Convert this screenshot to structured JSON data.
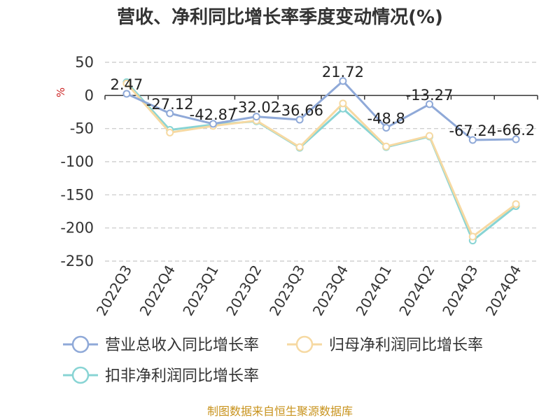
{
  "chart_data": {
    "type": "line",
    "title": "营收、净利同比增长率季度变动情况(%)",
    "unit_label": "%",
    "categories": [
      "2022Q3",
      "2022Q4",
      "2023Q1",
      "2023Q2",
      "2023Q3",
      "2023Q4",
      "2024Q1",
      "2024Q2",
      "2024Q3",
      "2024Q4"
    ],
    "yticks": [
      50,
      0,
      -50,
      -100,
      -150,
      -200,
      -250
    ],
    "ylim": [
      -250,
      50
    ],
    "grid": true,
    "legend_position": "bottom",
    "series": [
      {
        "name": "营业总收入同比增长率",
        "color": "#8fa9d8",
        "values": [
          2.47,
          -27.12,
          -42.87,
          -32.02,
          -36.66,
          21.72,
          -48.8,
          -13.27,
          -67.24,
          -66.2
        ],
        "labels": [
          "2.47",
          "-27.12",
          "-42.87",
          "-32.02",
          "-36.66",
          "21.72",
          "-48.8",
          "-13.27",
          "-67.24",
          "-66.2"
        ]
      },
      {
        "name": "归母净利润同比增长率",
        "color": "#f6d9a2",
        "values": [
          18,
          -56,
          -46,
          -38,
          -78,
          -12,
          -77,
          -61,
          -213,
          -164
        ]
      },
      {
        "name": "扣非净利润同比增长率",
        "color": "#88d4d4",
        "values": [
          20,
          -52,
          -44,
          -39,
          -79,
          -20,
          -78,
          -62,
          -219,
          -167
        ]
      }
    ]
  },
  "source": "制图数据来自恒生聚源数据库"
}
